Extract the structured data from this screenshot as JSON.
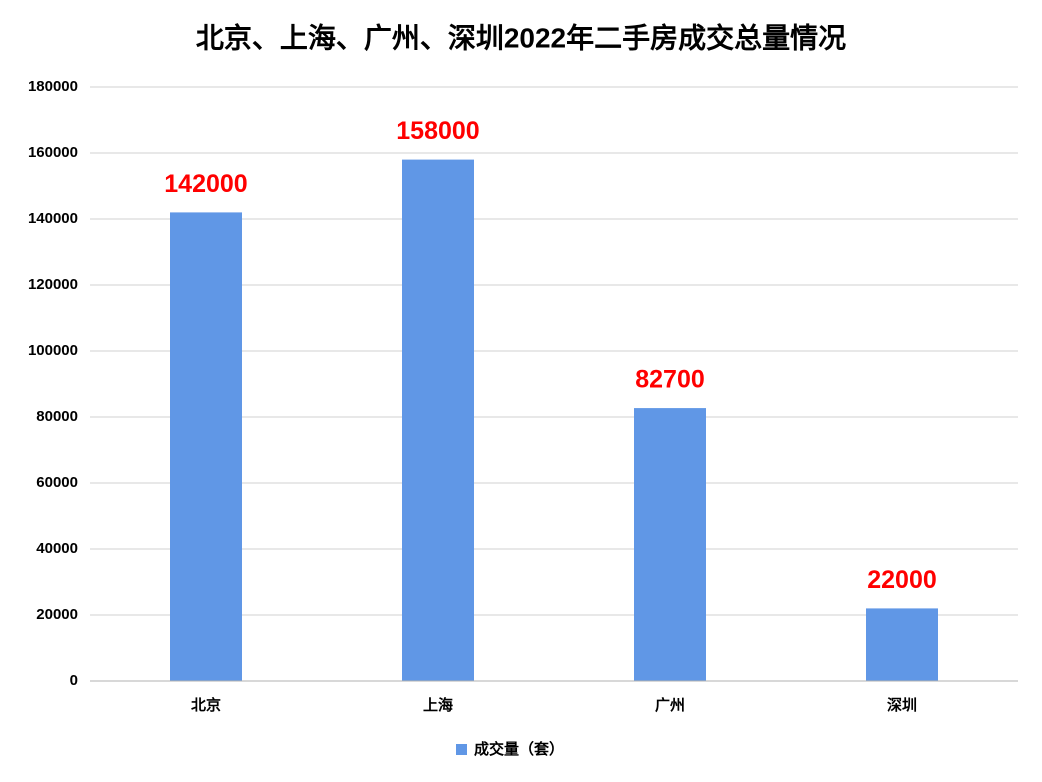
{
  "chart_data": {
    "type": "bar",
    "title": "北京、上海、广州、深圳2022年二手房成交总量情况",
    "categories": [
      "北京",
      "上海",
      "广州",
      "深圳"
    ],
    "series": [
      {
        "name": "成交量（套）",
        "color": "#6097e6",
        "values": [
          142000,
          158000,
          82700,
          22000
        ]
      }
    ],
    "ylim": [
      0,
      180000
    ],
    "yticks": [
      0,
      20000,
      40000,
      60000,
      80000,
      100000,
      120000,
      140000,
      160000,
      180000
    ],
    "grid": true,
    "legend": "bottom",
    "value_label_color": "#ff0000"
  }
}
